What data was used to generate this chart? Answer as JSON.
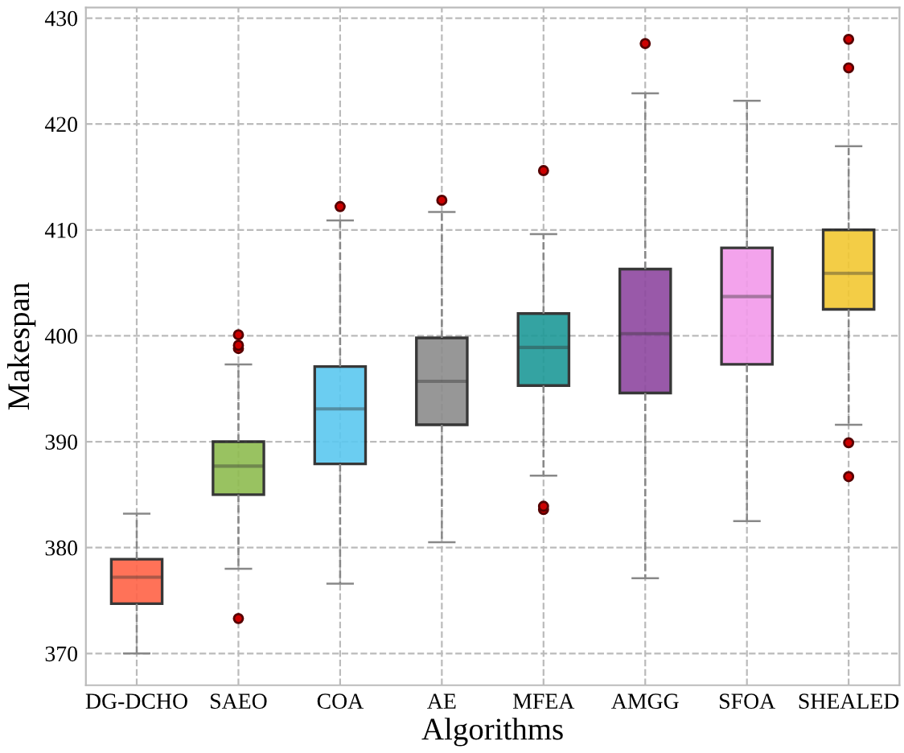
{
  "chart_data": {
    "type": "box",
    "xlabel": "Algorithms",
    "ylabel": "Makespan",
    "categories": [
      "DG-DCHO",
      "SAEO",
      "COA",
      "AE",
      "MFEA",
      "AMGG",
      "SFOA",
      "SHEALED"
    ],
    "colors": [
      "#ff6347",
      "#8fbc50",
      "#5bc8f0",
      "#8c8c8c",
      "#1f9a98",
      "#8e48a0",
      "#f29aea",
      "#f2c832"
    ],
    "boxes": [
      {
        "low": 370,
        "q1": 374.7,
        "median": 377.2,
        "q3": 378.9,
        "high": 383.2
      },
      {
        "low": 378,
        "q1": 385,
        "median": 387.7,
        "q3": 390,
        "high": 397.3,
        "outliers": [
          373.3,
          398.8,
          399.1,
          400.1
        ]
      },
      {
        "low": 376.6,
        "q1": 387.9,
        "median": 393.1,
        "q3": 397.1,
        "high": 410.9,
        "outliers": [
          412.2
        ]
      },
      {
        "low": 380.5,
        "q1": 391.6,
        "median": 395.7,
        "q3": 399.8,
        "high": 411.7,
        "outliers": [
          412.8
        ]
      },
      {
        "low": 386.8,
        "q1": 395.3,
        "median": 398.9,
        "q3": 402.1,
        "high": 409.6,
        "outliers": [
          383.6,
          383.9,
          415.6
        ]
      },
      {
        "low": 377.1,
        "q1": 394.6,
        "median": 400.2,
        "q3": 406.3,
        "high": 422.9,
        "outliers": [
          427.6
        ]
      },
      {
        "low": 382.5,
        "q1": 397.3,
        "median": 403.7,
        "q3": 408.3,
        "high": 422.2
      },
      {
        "low": 391.6,
        "q1": 402.5,
        "median": 405.9,
        "q3": 410,
        "high": 417.9,
        "outliers": [
          386.7,
          389.9,
          425.3,
          428
        ]
      }
    ],
    "ylim": [
      367,
      431
    ],
    "yticks": [
      370,
      380,
      390,
      400,
      410,
      420,
      430
    ],
    "grid": true
  }
}
